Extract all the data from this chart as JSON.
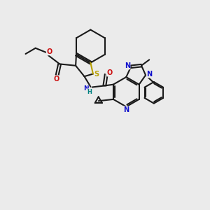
{
  "bg_color": "#ebebeb",
  "bond_color": "#1a1a1a",
  "S_color": "#b8a000",
  "N_color": "#1010cc",
  "O_color": "#cc1010",
  "H_color": "#008080",
  "linewidth": 1.5,
  "figsize": [
    3.0,
    3.0
  ],
  "dpi": 100,
  "xlim": [
    0,
    10
  ],
  "ylim": [
    0,
    10
  ]
}
